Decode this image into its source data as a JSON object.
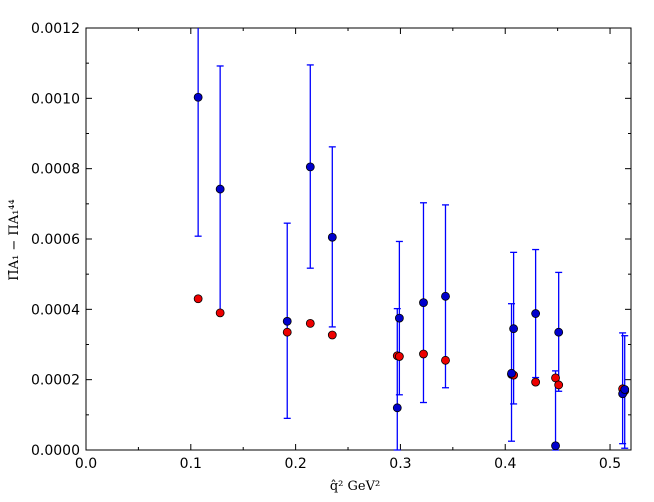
{
  "chart_data": {
    "type": "scatter",
    "title": "",
    "xlabel": "q̂² GeV²",
    "ylabel": "Π̄A₁ − ΠA₁⁴⁴",
    "xlim": [
      0.0,
      0.52
    ],
    "ylim": [
      0.0,
      0.0012
    ],
    "xticks": [
      "0.0",
      "0.1",
      "0.2",
      "0.3",
      "0.4",
      "0.5"
    ],
    "yticks": [
      "0.0000",
      "0.0002",
      "0.0004",
      "0.0006",
      "0.0008",
      "0.0010",
      "0.0012"
    ],
    "grid": false,
    "legend": "none",
    "series": [
      {
        "color": "#0000cc",
        "errorbar_color": "#0000ff",
        "points": [
          {
            "x": 0.107,
            "y": 0.001003,
            "lo": 0.000608,
            "hi": 0.00125
          },
          {
            "x": 0.128,
            "y": 0.000742,
            "lo": 0.000395,
            "hi": 0.001092
          },
          {
            "x": 0.192,
            "y": 0.000366,
            "lo": 9e-05,
            "hi": 0.000645
          },
          {
            "x": 0.214,
            "y": 0.000805,
            "lo": 0.000517,
            "hi": 0.001095
          },
          {
            "x": 0.235,
            "y": 0.000605,
            "lo": 0.00035,
            "hi": 0.000862
          },
          {
            "x": 0.297,
            "y": 0.00012,
            "lo": 0.0,
            "hi": 0.000402
          },
          {
            "x": 0.299,
            "y": 0.000375,
            "lo": 0.000157,
            "hi": 0.000593
          },
          {
            "x": 0.322,
            "y": 0.000419,
            "lo": 0.000135,
            "hi": 0.000703
          },
          {
            "x": 0.343,
            "y": 0.000437,
            "lo": 0.000177,
            "hi": 0.000697
          },
          {
            "x": 0.406,
            "y": 0.000218,
            "lo": 2.5e-05,
            "hi": 0.000416
          },
          {
            "x": 0.408,
            "y": 0.000345,
            "lo": 0.000131,
            "hi": 0.000562
          },
          {
            "x": 0.429,
            "y": 0.000388,
            "lo": 0.000206,
            "hi": 0.00057
          },
          {
            "x": 0.448,
            "y": 1.2e-05,
            "lo": 0.0,
            "hi": 0.000225
          },
          {
            "x": 0.451,
            "y": 0.000335,
            "lo": 0.000167,
            "hi": 0.000505
          },
          {
            "x": 0.512,
            "y": 0.00016,
            "lo": 1.8e-05,
            "hi": 0.000333
          },
          {
            "x": 0.514,
            "y": 0.000172,
            "lo": 5e-06,
            "hi": 0.000325
          }
        ]
      },
      {
        "color": "#ee0000",
        "points": [
          {
            "x": 0.107,
            "y": 0.00043
          },
          {
            "x": 0.128,
            "y": 0.00039
          },
          {
            "x": 0.192,
            "y": 0.000335
          },
          {
            "x": 0.214,
            "y": 0.00036
          },
          {
            "x": 0.235,
            "y": 0.000327
          },
          {
            "x": 0.297,
            "y": 0.000268
          },
          {
            "x": 0.299,
            "y": 0.000266
          },
          {
            "x": 0.322,
            "y": 0.000273
          },
          {
            "x": 0.343,
            "y": 0.000255
          },
          {
            "x": 0.406,
            "y": 0.000215
          },
          {
            "x": 0.408,
            "y": 0.000213
          },
          {
            "x": 0.429,
            "y": 0.000193
          },
          {
            "x": 0.448,
            "y": 0.000205
          },
          {
            "x": 0.451,
            "y": 0.000185
          },
          {
            "x": 0.512,
            "y": 0.000174
          },
          {
            "x": 0.514,
            "y": 0.000168
          }
        ]
      }
    ]
  }
}
